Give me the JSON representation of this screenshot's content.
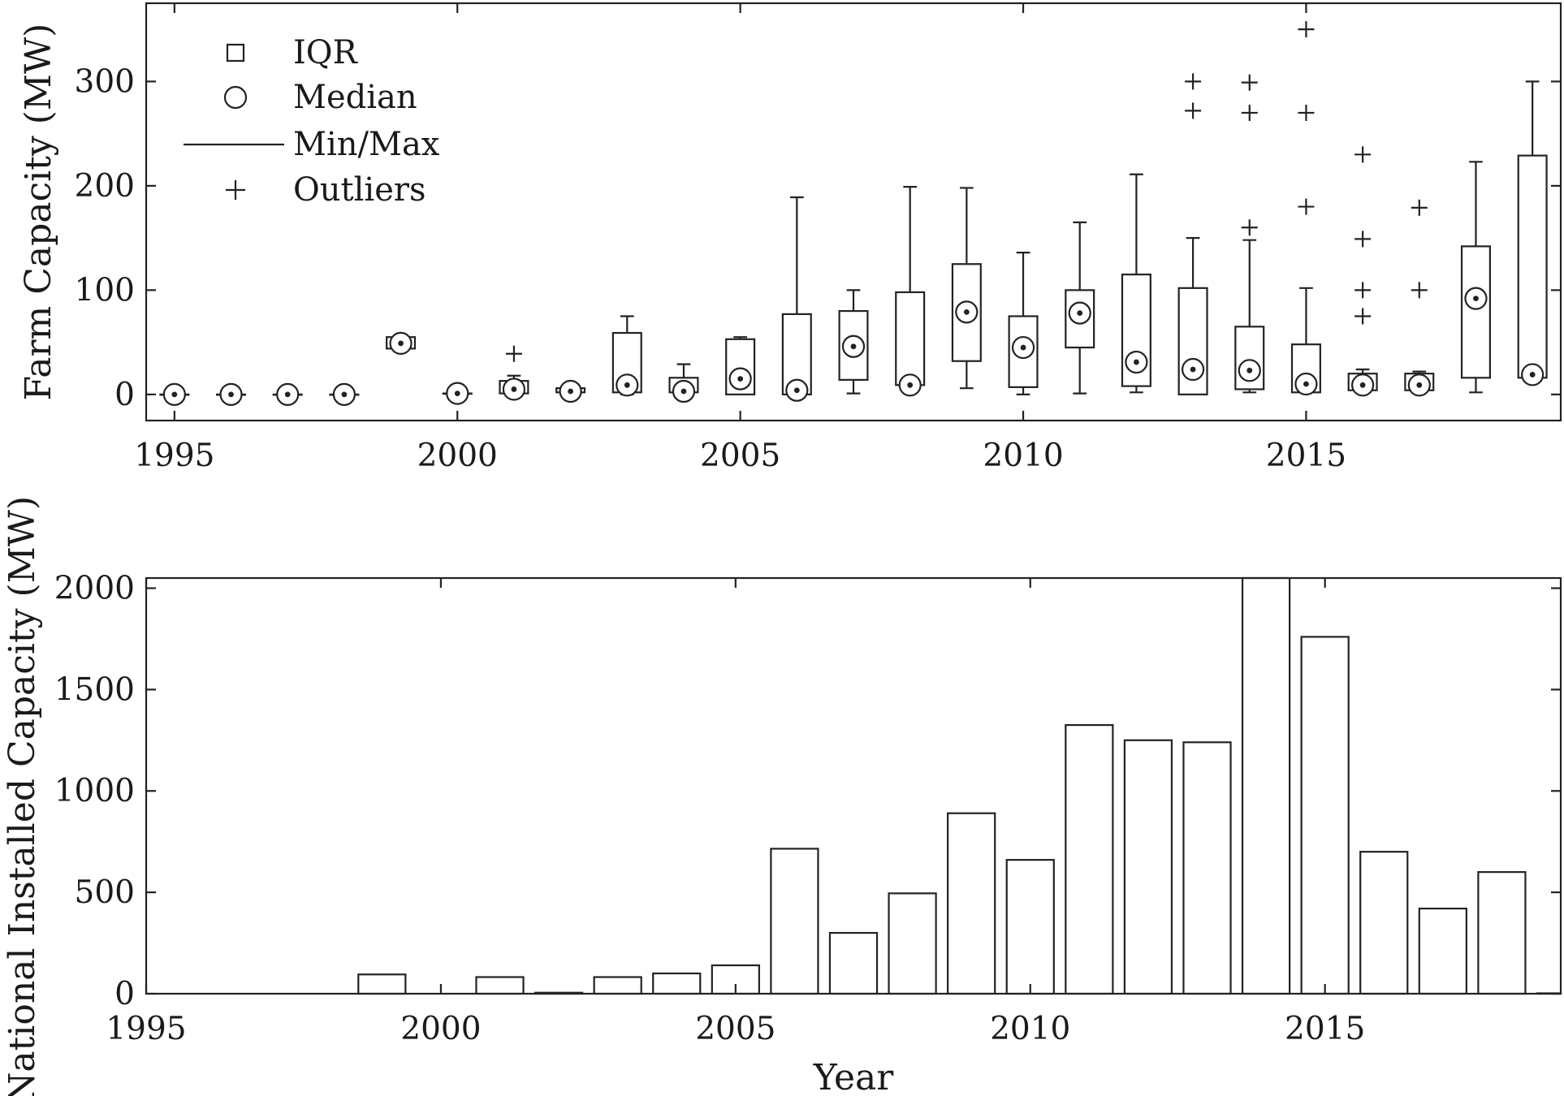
{
  "chart_data": [
    {
      "type": "boxplot",
      "ylabel": "Farm Capacity (MW)",
      "xlabel": "",
      "xlim": [
        1994.5,
        2019.5
      ],
      "ylim": [
        -25,
        375
      ],
      "xticks": [
        1995,
        2000,
        2005,
        2010,
        2015
      ],
      "yticks": [
        0,
        100,
        200,
        300
      ],
      "legend": {
        "placement": "top-left",
        "entries": [
          {
            "marker": "square-icon",
            "label": "IQR"
          },
          {
            "marker": "circle-icon",
            "label": "Median"
          },
          {
            "marker": "line-icon",
            "label": "Min/Max"
          },
          {
            "marker": "plus-icon",
            "label": "Outliers"
          }
        ]
      },
      "boxes": [
        {
          "year": 1995,
          "min": 0,
          "q1": 0,
          "median": 0,
          "q3": 0,
          "max": 0,
          "outliers": []
        },
        {
          "year": 1996,
          "min": 0,
          "q1": 0,
          "median": 0,
          "q3": 0,
          "max": 0,
          "outliers": []
        },
        {
          "year": 1997,
          "min": 0,
          "q1": 0,
          "median": 0,
          "q3": 0,
          "max": 0,
          "outliers": []
        },
        {
          "year": 1998,
          "min": 0,
          "q1": 0,
          "median": 0,
          "q3": 0,
          "max": 0,
          "outliers": []
        },
        {
          "year": 1999,
          "min": 44,
          "q1": 44,
          "median": 49,
          "q3": 55,
          "max": 55,
          "outliers": []
        },
        {
          "year": 2000,
          "min": 1,
          "q1": 1,
          "median": 1,
          "q3": 1,
          "max": 1,
          "outliers": []
        },
        {
          "year": 2001,
          "min": 0,
          "q1": 1,
          "median": 5,
          "q3": 13,
          "max": 18,
          "outliers": [
            39
          ]
        },
        {
          "year": 2002,
          "min": 2,
          "q1": 2,
          "median": 3,
          "q3": 6,
          "max": 7,
          "outliers": []
        },
        {
          "year": 2003,
          "min": 0,
          "q1": 2,
          "median": 9,
          "q3": 59,
          "max": 75,
          "outliers": []
        },
        {
          "year": 2004,
          "min": 1,
          "q1": 2,
          "median": 3,
          "q3": 16,
          "max": 29,
          "outliers": []
        },
        {
          "year": 2005,
          "min": 0,
          "q1": 0,
          "median": 15,
          "q3": 53,
          "max": 55,
          "outliers": []
        },
        {
          "year": 2006,
          "min": 0,
          "q1": 0,
          "median": 4,
          "q3": 77,
          "max": 189,
          "outliers": []
        },
        {
          "year": 2007,
          "min": 1,
          "q1": 14,
          "median": 46,
          "q3": 80,
          "max": 100,
          "outliers": []
        },
        {
          "year": 2008,
          "min": 9,
          "q1": 9,
          "median": 9,
          "q3": 98,
          "max": 199,
          "outliers": []
        },
        {
          "year": 2009,
          "min": 6,
          "q1": 32,
          "median": 79,
          "q3": 125,
          "max": 198,
          "outliers": []
        },
        {
          "year": 2010,
          "min": 0,
          "q1": 7,
          "median": 45,
          "q3": 75,
          "max": 136,
          "outliers": []
        },
        {
          "year": 2011,
          "min": 1,
          "q1": 45,
          "median": 78,
          "q3": 100,
          "max": 165,
          "outliers": []
        },
        {
          "year": 2012,
          "min": 2,
          "q1": 8,
          "median": 31,
          "q3": 115,
          "max": 211,
          "outliers": []
        },
        {
          "year": 2013,
          "min": 0,
          "q1": 0,
          "median": 24,
          "q3": 102,
          "max": 150,
          "outliers": [
            272,
            300
          ]
        },
        {
          "year": 2014,
          "min": 2,
          "q1": 5,
          "median": 23,
          "q3": 65,
          "max": 148,
          "outliers": [
            160,
            270,
            299
          ]
        },
        {
          "year": 2015,
          "min": 2,
          "q1": 2,
          "median": 10,
          "q3": 48,
          "max": 102,
          "outliers": [
            180,
            270,
            350
          ]
        },
        {
          "year": 2016,
          "min": 4,
          "q1": 4,
          "median": 9,
          "q3": 20,
          "max": 24,
          "outliers": [
            75,
            100,
            149,
            230
          ]
        },
        {
          "year": 2017,
          "min": 4,
          "q1": 4,
          "median": 9,
          "q3": 20,
          "max": 22,
          "outliers": [
            100,
            179
          ]
        },
        {
          "year": 2018,
          "min": 2,
          "q1": 16,
          "median": 92,
          "q3": 142,
          "max": 223,
          "outliers": []
        },
        {
          "year": 2019,
          "min": 16,
          "q1": 16,
          "median": 19,
          "q3": 229,
          "max": 300,
          "outliers": []
        }
      ]
    },
    {
      "type": "bar",
      "ylabel": "National Installed Capacity (MW)",
      "xlabel": "Year",
      "xlim": [
        1995,
        2019
      ],
      "ylim": [
        0,
        2050
      ],
      "xticks": [
        1995,
        2000,
        2005,
        2010,
        2015
      ],
      "yticks": [
        0,
        500,
        1000,
        1500,
        2000
      ],
      "categories": [
        1999,
        2001,
        2002,
        2003,
        2004,
        2005,
        2006,
        2007,
        2008,
        2009,
        2010,
        2011,
        2012,
        2013,
        2014,
        2015,
        2016,
        2017,
        2018,
        2019
      ],
      "values": [
        95,
        82,
        5,
        82,
        100,
        140,
        715,
        300,
        495,
        890,
        660,
        1325,
        1250,
        1240,
        2050,
        1760,
        700,
        420,
        600,
        2
      ]
    }
  ]
}
